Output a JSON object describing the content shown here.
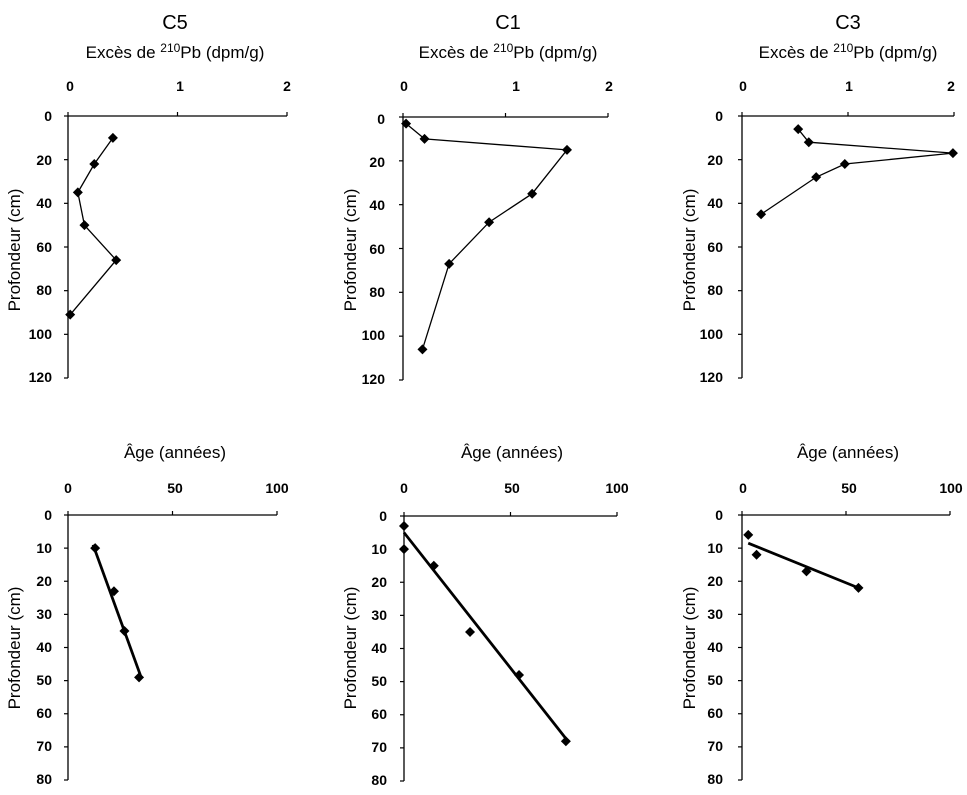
{
  "chart_data": [
    {
      "type": "line",
      "panel": "C5-excess",
      "title": "C5",
      "xlabel_prefix": "Excès de ",
      "xlabel_sup": "210",
      "xlabel_suffix": "Pb (dpm/g)",
      "ylabel": "Profondeur (cm)",
      "xlim": [
        0,
        2
      ],
      "ylim": [
        0,
        120
      ],
      "xticks": [
        "0",
        "1",
        "2"
      ],
      "xtick_values": [
        0,
        1,
        2
      ],
      "yticks": [
        "0",
        "20",
        "40",
        "60",
        "80",
        "100",
        "120"
      ],
      "ytick_values": [
        0,
        20,
        40,
        60,
        80,
        100,
        120
      ],
      "y_inverted": true,
      "x_axis_position": "top",
      "series": [
        {
          "x": [
            0.41,
            0.24,
            0.09,
            0.15,
            0.44,
            0.02
          ],
          "y": [
            10,
            22,
            35,
            50,
            66,
            91
          ]
        }
      ]
    },
    {
      "type": "line",
      "panel": "C1-excess",
      "title": "C1",
      "xlabel_prefix": "Excès de ",
      "xlabel_sup": "210",
      "xlabel_suffix": "Pb (dpm/g)",
      "ylabel": "Profondeur (cm)",
      "xlim": [
        0,
        2
      ],
      "ylim": [
        0,
        120
      ],
      "xticks": [
        "0",
        "1",
        "2"
      ],
      "xtick_values": [
        0,
        1,
        2
      ],
      "yticks": [
        "0",
        "20",
        "40",
        "60",
        "80",
        "100",
        "120"
      ],
      "ytick_values": [
        0,
        20,
        40,
        60,
        80,
        100,
        120
      ],
      "y_inverted": true,
      "x_axis_position": "top",
      "series": [
        {
          "x": [
            0.03,
            0.21,
            1.6,
            1.26,
            0.84,
            0.45,
            0.19
          ],
          "y": [
            3,
            10,
            15,
            35,
            48,
            67,
            106
          ]
        }
      ]
    },
    {
      "type": "line",
      "panel": "C3-excess",
      "title": "C3",
      "xlabel_prefix": "Excès de ",
      "xlabel_sup": "210",
      "xlabel_suffix": "Pb (dpm/g)",
      "ylabel": "Profondeur (cm)",
      "xlim": [
        0,
        2
      ],
      "ylim": [
        0,
        120
      ],
      "xticks": [
        "0",
        "1",
        "2"
      ],
      "xtick_values": [
        0,
        1,
        2
      ],
      "yticks": [
        "0",
        "20",
        "40",
        "60",
        "80",
        "100",
        "120"
      ],
      "ytick_values": [
        0,
        20,
        40,
        60,
        80,
        100,
        120
      ],
      "y_inverted": true,
      "x_axis_position": "top",
      "series": [
        {
          "x": [
            0.53,
            0.63,
            1.99,
            0.97,
            0.7,
            0.18
          ],
          "y": [
            6,
            12,
            17,
            22,
            28,
            45
          ]
        }
      ]
    },
    {
      "type": "scatter",
      "panel": "C5-age",
      "xlabel": "Âge (années)",
      "ylabel": "Profondeur (cm)",
      "xlim": [
        0,
        100
      ],
      "ylim": [
        0,
        80
      ],
      "xticks": [
        "0",
        "50",
        "100"
      ],
      "xtick_values": [
        0,
        50,
        100
      ],
      "yticks": [
        "0",
        "10",
        "20",
        "30",
        "40",
        "50",
        "60",
        "70",
        "80"
      ],
      "ytick_values": [
        0,
        10,
        20,
        30,
        40,
        50,
        60,
        70,
        80
      ],
      "y_inverted": true,
      "x_axis_position": "top",
      "series": [
        {
          "x": [
            13,
            22,
            27,
            34
          ],
          "y": [
            10,
            23,
            35,
            49
          ]
        }
      ],
      "fit_line": {
        "x": [
          12,
          35
        ],
        "y": [
          9,
          49
        ]
      }
    },
    {
      "type": "scatter",
      "panel": "C1-age",
      "xlabel": "Âge (années)",
      "ylabel": "Profondeur (cm)",
      "xlim": [
        0,
        100
      ],
      "ylim": [
        0,
        80
      ],
      "xticks": [
        "0",
        "50",
        "100"
      ],
      "xtick_values": [
        0,
        50,
        100
      ],
      "yticks": [
        "0",
        "10",
        "20",
        "30",
        "40",
        "50",
        "60",
        "70",
        "80"
      ],
      "ytick_values": [
        0,
        10,
        20,
        30,
        40,
        50,
        60,
        70,
        80
      ],
      "y_inverted": true,
      "x_axis_position": "top",
      "series": [
        {
          "x": [
            0,
            0,
            14,
            31,
            54,
            76
          ],
          "y": [
            3,
            10,
            15,
            35,
            48,
            68
          ]
        }
      ],
      "fit_line": {
        "x": [
          0,
          77
        ],
        "y": [
          5,
          68
        ]
      }
    },
    {
      "type": "scatter",
      "panel": "C3-age",
      "xlabel": "Âge (années)",
      "ylabel": "Profondeur (cm)",
      "xlim": [
        0,
        100
      ],
      "ylim": [
        0,
        80
      ],
      "xticks": [
        "0",
        "50",
        "100"
      ],
      "xtick_values": [
        0,
        50,
        100
      ],
      "yticks": [
        "0",
        "10",
        "20",
        "30",
        "40",
        "50",
        "60",
        "70",
        "80"
      ],
      "ytick_values": [
        0,
        10,
        20,
        30,
        40,
        50,
        60,
        70,
        80
      ],
      "y_inverted": true,
      "x_axis_position": "top",
      "series": [
        {
          "x": [
            3,
            7,
            31,
            56
          ],
          "y": [
            6,
            12,
            17,
            22
          ]
        }
      ],
      "fit_line": {
        "x": [
          3,
          56
        ],
        "y": [
          8.5,
          22
        ]
      }
    }
  ]
}
